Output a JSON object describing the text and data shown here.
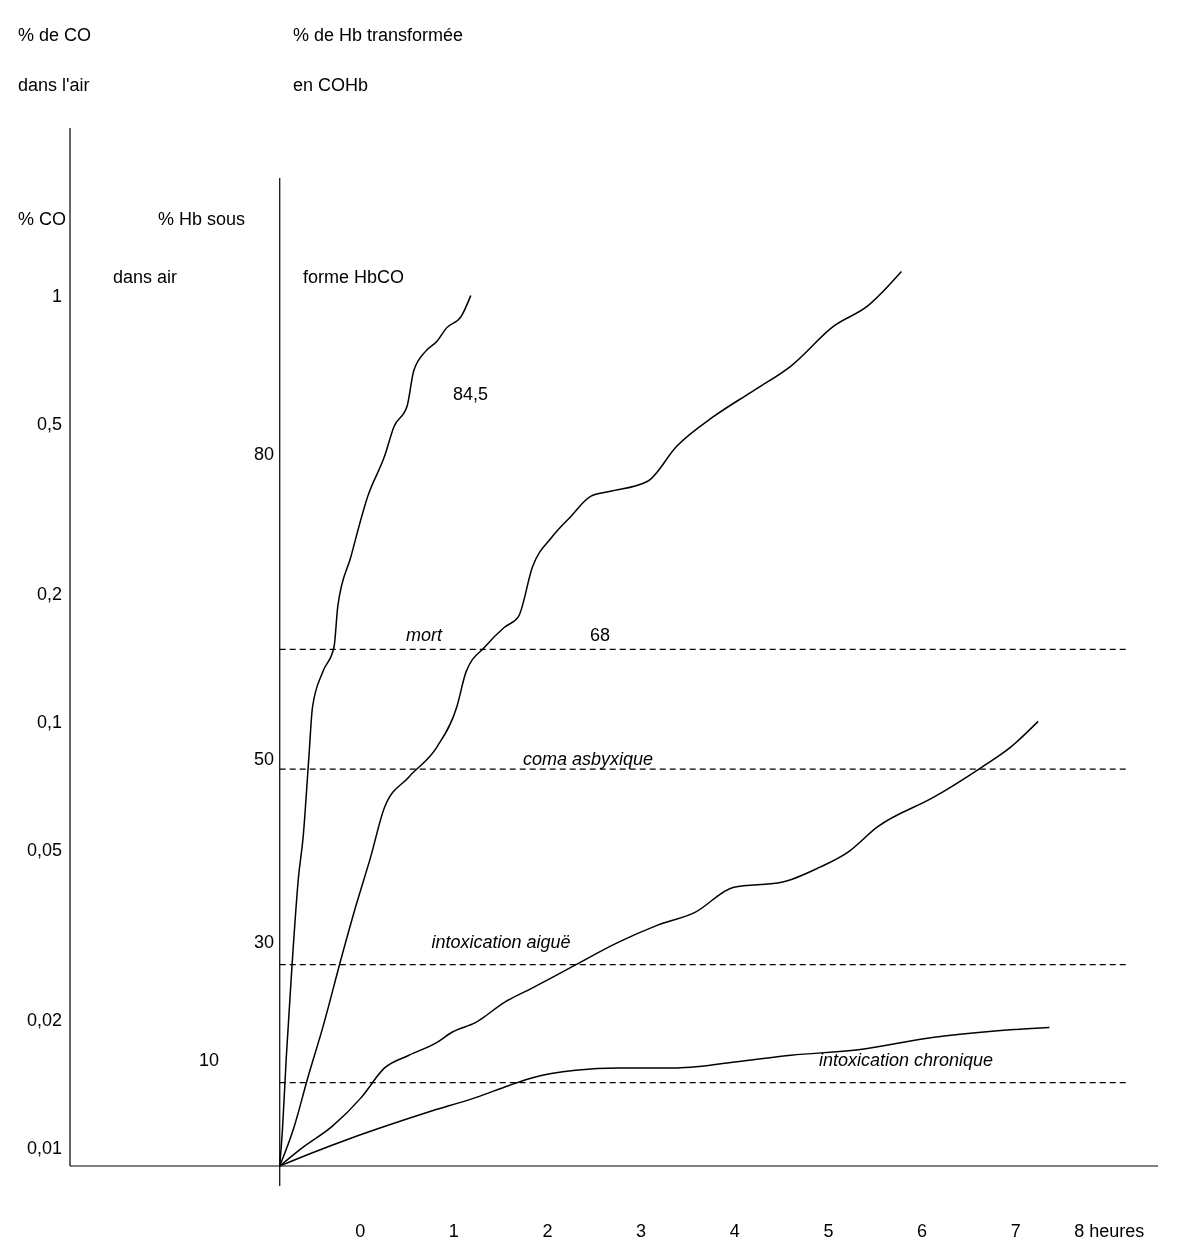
{
  "chart_data": {
    "type": "line",
    "ylabel": "% de CO dans l'air",
    "log": "y",
    "grid": false,
    "line_style": "solid",
    "xlim": [
      -3.1,
      8.2
    ],
    "xticks": [
      0,
      1,
      2,
      3,
      4,
      5,
      6,
      7,
      {
        "value": 8,
        "label": "8 heures"
      }
    ],
    "ylim": [
      0.00912,
      2.5
    ],
    "yticks": [
      1,
      {
        "value": 0.5,
        "label": "0,5"
      },
      {
        "value": 0.2,
        "label": "0,2"
      },
      {
        "value": 0.1,
        "label": "0,1"
      },
      {
        "value": 0.05,
        "label": "0,05"
      },
      {
        "value": 0.02,
        "label": "0,02"
      },
      {
        "value": 0.01,
        "label": "0,01"
      }
    ],
    "series": [
      {
        "color": "#000000",
        "x": [
          -0.86,
          -0.83,
          -0.79,
          -0.73,
          -0.66,
          -0.61,
          -0.55,
          -0.51,
          -0.4,
          -0.28,
          -0.24,
          -0.1,
          0.08,
          0.26,
          0.36,
          0.5,
          0.57,
          0.7,
          0.82,
          0.92,
          1.08,
          1.18
        ],
        "values": [
          0.00912,
          0.0112,
          0.0164,
          0.0267,
          0.0434,
          0.054,
          0.0824,
          0.109,
          0.132,
          0.151,
          0.188,
          0.246,
          0.341,
          0.424,
          0.497,
          0.555,
          0.671,
          0.748,
          0.789,
          0.847,
          0.904,
          1.01
        ]
      },
      {
        "color": "#000000",
        "x": [
          -0.86,
          -0.71,
          -0.56,
          -0.4,
          -0.2,
          -0.05,
          0.11,
          0.26,
          0.52,
          0.82,
          1.03,
          1.13,
          1.33,
          1.54,
          1.69,
          1.84,
          2.05,
          2.25,
          2.46,
          2.66,
          3.07,
          3.38,
          3.78,
          4.19,
          4.6,
          5.06,
          5.42,
          5.78
        ],
        "values": [
          0.00912,
          0.0112,
          0.0147,
          0.0193,
          0.0282,
          0.037,
          0.0484,
          0.0635,
          0.0748,
          0.088,
          0.109,
          0.132,
          0.151,
          0.168,
          0.178,
          0.233,
          0.274,
          0.306,
          0.341,
          0.35,
          0.37,
          0.447,
          0.526,
          0.602,
          0.69,
          0.857,
          0.955,
          1.15
        ]
      },
      {
        "color": "#000000",
        "x": [
          -0.86,
          -0.61,
          -0.3,
          0.01,
          0.26,
          0.52,
          0.82,
          0.98,
          1.23,
          1.54,
          1.84,
          2.25,
          2.76,
          3.17,
          3.58,
          3.99,
          4.5,
          4.91,
          5.21,
          5.52,
          6.13,
          6.64,
          6.95,
          7.24
        ],
        "values": [
          0.00912,
          0.0101,
          0.0113,
          0.0132,
          0.0155,
          0.0166,
          0.0178,
          0.0188,
          0.0198,
          0.0221,
          0.0239,
          0.0267,
          0.0306,
          0.0335,
          0.036,
          0.0412,
          0.0423,
          0.0459,
          0.0498,
          0.057,
          0.0671,
          0.0789,
          0.088,
          0.101
        ]
      },
      {
        "color": "#000000",
        "x": [
          -0.86,
          -0.51,
          -0.1,
          0.21,
          0.72,
          1.23,
          1.59,
          1.84,
          2.3,
          2.76,
          3.38,
          4.09,
          4.6,
          5.32,
          6.13,
          6.75,
          7.36
        ],
        "values": [
          0.00912,
          0.0098,
          0.0106,
          0.0112,
          0.0122,
          0.0132,
          0.0141,
          0.0147,
          0.0153,
          0.0155,
          0.0155,
          0.0161,
          0.0166,
          0.0171,
          0.0183,
          0.0189,
          0.0193
        ]
      }
    ],
    "ref_lines": [
      {
        "axis": "x",
        "value": -0.86,
        "line_style": "solid",
        "color": "#000000"
      },
      {
        "axis": "y",
        "value": 0.149,
        "line_style": "dashed",
        "color": "#000000"
      },
      {
        "axis": "y",
        "value": 0.078,
        "line_style": "dashed",
        "color": "#000000"
      },
      {
        "axis": "y",
        "value": 0.0271,
        "line_style": "dashed",
        "color": "#000000"
      },
      {
        "axis": "y",
        "value": 0.01432,
        "line_style": "dashed",
        "color": "#000000"
      }
    ],
    "annotations": [
      "% de Hb transformée en COHb",
      "% CO dans air",
      "% Hb sous forme HbCO",
      "84,5",
      "80",
      "mort",
      "68",
      "50",
      "coma asbyxique",
      "30",
      "intoxication aiguë",
      "10",
      "intoxication chronique"
    ]
  }
}
